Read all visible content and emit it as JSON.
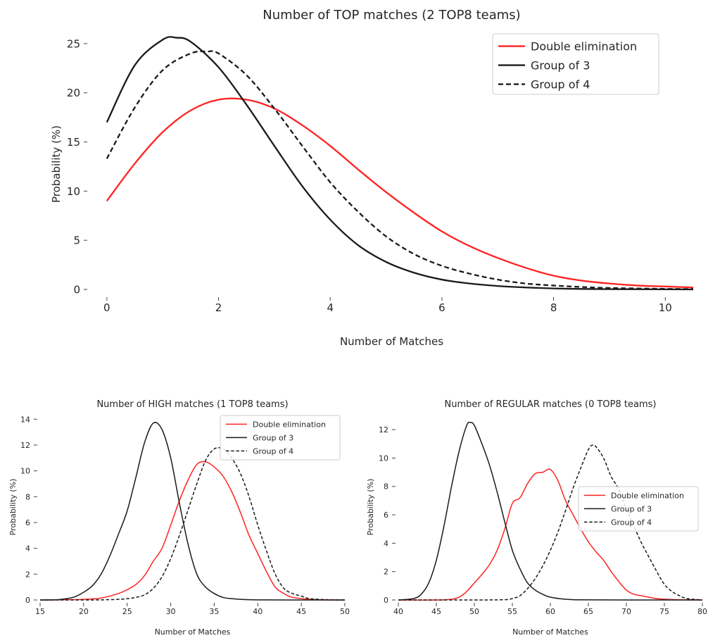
{
  "chart_data": [
    {
      "type": "line",
      "title": "Number of TOP matches (2 TOP8 teams)",
      "xlabel": "Number of Matches",
      "ylabel": "Probability (%)",
      "xlim": [
        -0.3,
        10.5
      ],
      "ylim": [
        -0.5,
        26
      ],
      "xticks": [
        0,
        2,
        4,
        6,
        8,
        10
      ],
      "yticks": [
        0,
        5,
        10,
        15,
        20,
        25
      ],
      "grid": false,
      "legend_position": "top-right",
      "series": [
        {
          "name": "Double elimination",
          "color": "#ff2222",
          "dash": "solid",
          "x": [
            0,
            0.5,
            1,
            1.5,
            2,
            2.5,
            3,
            3.5,
            4,
            4.5,
            5,
            5.5,
            6,
            6.5,
            7,
            7.5,
            8,
            8.5,
            9,
            9.5,
            10,
            10.5
          ],
          "y": [
            9.0,
            12.8,
            16.0,
            18.2,
            19.3,
            19.3,
            18.4,
            16.7,
            14.6,
            12.2,
            9.9,
            7.8,
            5.9,
            4.4,
            3.2,
            2.2,
            1.4,
            0.9,
            0.6,
            0.4,
            0.3,
            0.2
          ]
        },
        {
          "name": "Group of 3",
          "color": "#1a1a1a",
          "dash": "solid",
          "x": [
            0,
            0.5,
            1,
            1.25,
            1.5,
            2,
            2.5,
            3,
            3.5,
            4,
            4.5,
            5,
            5.5,
            6,
            6.5,
            7,
            7.5,
            8,
            8.5,
            9,
            10,
            10.5
          ],
          "y": [
            17.0,
            22.8,
            25.4,
            25.6,
            25.2,
            22.6,
            18.8,
            14.6,
            10.5,
            7.1,
            4.5,
            2.8,
            1.7,
            1.0,
            0.6,
            0.35,
            0.2,
            0.1,
            0.05,
            0.03,
            0.01,
            0.0
          ]
        },
        {
          "name": "Group of 4",
          "color": "#1a1a1a",
          "dash": "dashed",
          "x": [
            0,
            0.5,
            1,
            1.5,
            1.8,
            2,
            2.5,
            3,
            3.5,
            4,
            4.5,
            5,
            5.5,
            6,
            6.5,
            7,
            7.5,
            8,
            8.5,
            9,
            10,
            10.5
          ],
          "y": [
            13.3,
            18.5,
            22.3,
            24.0,
            24.2,
            24.0,
            21.8,
            18.4,
            14.6,
            10.9,
            7.9,
            5.4,
            3.6,
            2.4,
            1.6,
            1.0,
            0.6,
            0.4,
            0.25,
            0.15,
            0.06,
            0.04
          ]
        }
      ]
    },
    {
      "type": "line",
      "title": "Number of HIGH matches (1 TOP8 teams)",
      "xlabel": "Number of Matches",
      "ylabel": "Probability (%)",
      "xlim": [
        15,
        50
      ],
      "ylim": [
        0,
        14.4
      ],
      "xticks": [
        15,
        20,
        25,
        30,
        35,
        40,
        45,
        50
      ],
      "yticks": [
        0,
        2,
        4,
        6,
        8,
        10,
        12,
        14
      ],
      "grid": false,
      "legend_position": "top-right",
      "series": [
        {
          "name": "Double elimination",
          "color": "#ff2222",
          "dash": "solid",
          "x": [
            15,
            18,
            20,
            22,
            24,
            25,
            26,
            27,
            28,
            29,
            30,
            31,
            32,
            33,
            34,
            35,
            36,
            37,
            38,
            39,
            40,
            41,
            42,
            43,
            44,
            46,
            48,
            50
          ],
          "y": [
            0,
            0.02,
            0.05,
            0.15,
            0.5,
            0.8,
            1.2,
            1.9,
            3.0,
            4.0,
            5.8,
            7.7,
            9.3,
            10.5,
            10.7,
            10.3,
            9.6,
            8.4,
            6.8,
            5.0,
            3.6,
            2.2,
            1.0,
            0.5,
            0.2,
            0.05,
            0.01,
            0
          ]
        },
        {
          "name": "Group of 3",
          "color": "#1a1a1a",
          "dash": "solid",
          "x": [
            15,
            17,
            18,
            19,
            20,
            21,
            22,
            23,
            24,
            25,
            26,
            27,
            28,
            29,
            30,
            31,
            32,
            33,
            34,
            35,
            36,
            37,
            38,
            40,
            45,
            50
          ],
          "y": [
            0,
            0.02,
            0.1,
            0.25,
            0.6,
            1.1,
            2.0,
            3.4,
            5.1,
            6.9,
            9.5,
            12.2,
            13.7,
            13.2,
            11.0,
            7.5,
            4.3,
            2.0,
            1.0,
            0.5,
            0.2,
            0.1,
            0.05,
            0.01,
            0,
            0
          ]
        },
        {
          "name": "Group of 4",
          "color": "#1a1a1a",
          "dash": "dashed",
          "x": [
            15,
            20,
            22,
            24,
            25,
            26,
            27,
            28,
            29,
            30,
            31,
            32,
            33,
            34,
            35,
            36,
            37,
            38,
            39,
            40,
            41,
            42,
            43,
            44,
            45,
            46,
            48,
            50
          ],
          "y": [
            0,
            0,
            0.01,
            0.05,
            0.1,
            0.2,
            0.4,
            0.9,
            1.8,
            3.2,
            5.0,
            7.0,
            9.0,
            10.8,
            11.7,
            11.7,
            11.0,
            9.8,
            8.0,
            5.8,
            3.8,
            2.0,
            0.9,
            0.5,
            0.3,
            0.1,
            0.02,
            0
          ]
        }
      ]
    },
    {
      "type": "line",
      "title": "Number of REGULAR matches (0 TOP8 teams)",
      "xlabel": "Number of Matches",
      "ylabel": "Probability (%)",
      "xlim": [
        40,
        80
      ],
      "ylim": [
        0,
        13.1
      ],
      "xticks": [
        40,
        45,
        50,
        55,
        60,
        65,
        70,
        75,
        80
      ],
      "yticks": [
        0,
        2,
        4,
        6,
        8,
        10,
        12
      ],
      "grid": false,
      "legend_position": "center-right",
      "series": [
        {
          "name": "Double elimination",
          "color": "#ff2222",
          "dash": "solid",
          "x": [
            40,
            45,
            47,
            48,
            49,
            50,
            51,
            52,
            53,
            54,
            55,
            56,
            57,
            58,
            59,
            60,
            61,
            62,
            63,
            64,
            65,
            66,
            67,
            68,
            69,
            70,
            71,
            72,
            74,
            76,
            78,
            80
          ],
          "y": [
            0,
            0,
            0.05,
            0.2,
            0.6,
            1.2,
            1.8,
            2.5,
            3.5,
            5.0,
            6.8,
            7.2,
            8.2,
            8.9,
            9.0,
            9.2,
            8.4,
            7.0,
            6.0,
            5.0,
            4.1,
            3.4,
            2.8,
            2.0,
            1.3,
            0.7,
            0.4,
            0.3,
            0.1,
            0.03,
            0.01,
            0
          ]
        },
        {
          "name": "Group of 3",
          "color": "#1a1a1a",
          "dash": "solid",
          "x": [
            40,
            42,
            43,
            44,
            45,
            46,
            47,
            48,
            49,
            49.5,
            50,
            51,
            52,
            53,
            54,
            55,
            56,
            57,
            58,
            59,
            60,
            62,
            64,
            70,
            80
          ],
          "y": [
            0,
            0.1,
            0.4,
            1.2,
            2.8,
            5.2,
            8.0,
            10.5,
            12.3,
            12.5,
            12.3,
            11.0,
            9.5,
            7.6,
            5.5,
            3.5,
            2.2,
            1.2,
            0.7,
            0.4,
            0.2,
            0.05,
            0.01,
            0,
            0
          ]
        },
        {
          "name": "Group of 4",
          "color": "#1a1a1a",
          "dash": "dashed",
          "x": [
            40,
            50,
            54,
            55,
            56,
            57,
            58,
            59,
            60,
            61,
            62,
            63,
            64,
            65,
            65.5,
            66,
            67,
            68,
            69,
            70,
            71,
            72,
            73,
            74,
            75,
            76,
            77,
            78,
            80
          ],
          "y": [
            0,
            0,
            0.02,
            0.1,
            0.3,
            0.8,
            1.5,
            2.4,
            3.5,
            4.8,
            6.3,
            7.9,
            9.3,
            10.6,
            10.9,
            10.8,
            10.0,
            8.7,
            7.8,
            6.4,
            5.2,
            4.0,
            3.0,
            2.0,
            1.1,
            0.6,
            0.3,
            0.1,
            0
          ]
        }
      ]
    }
  ]
}
